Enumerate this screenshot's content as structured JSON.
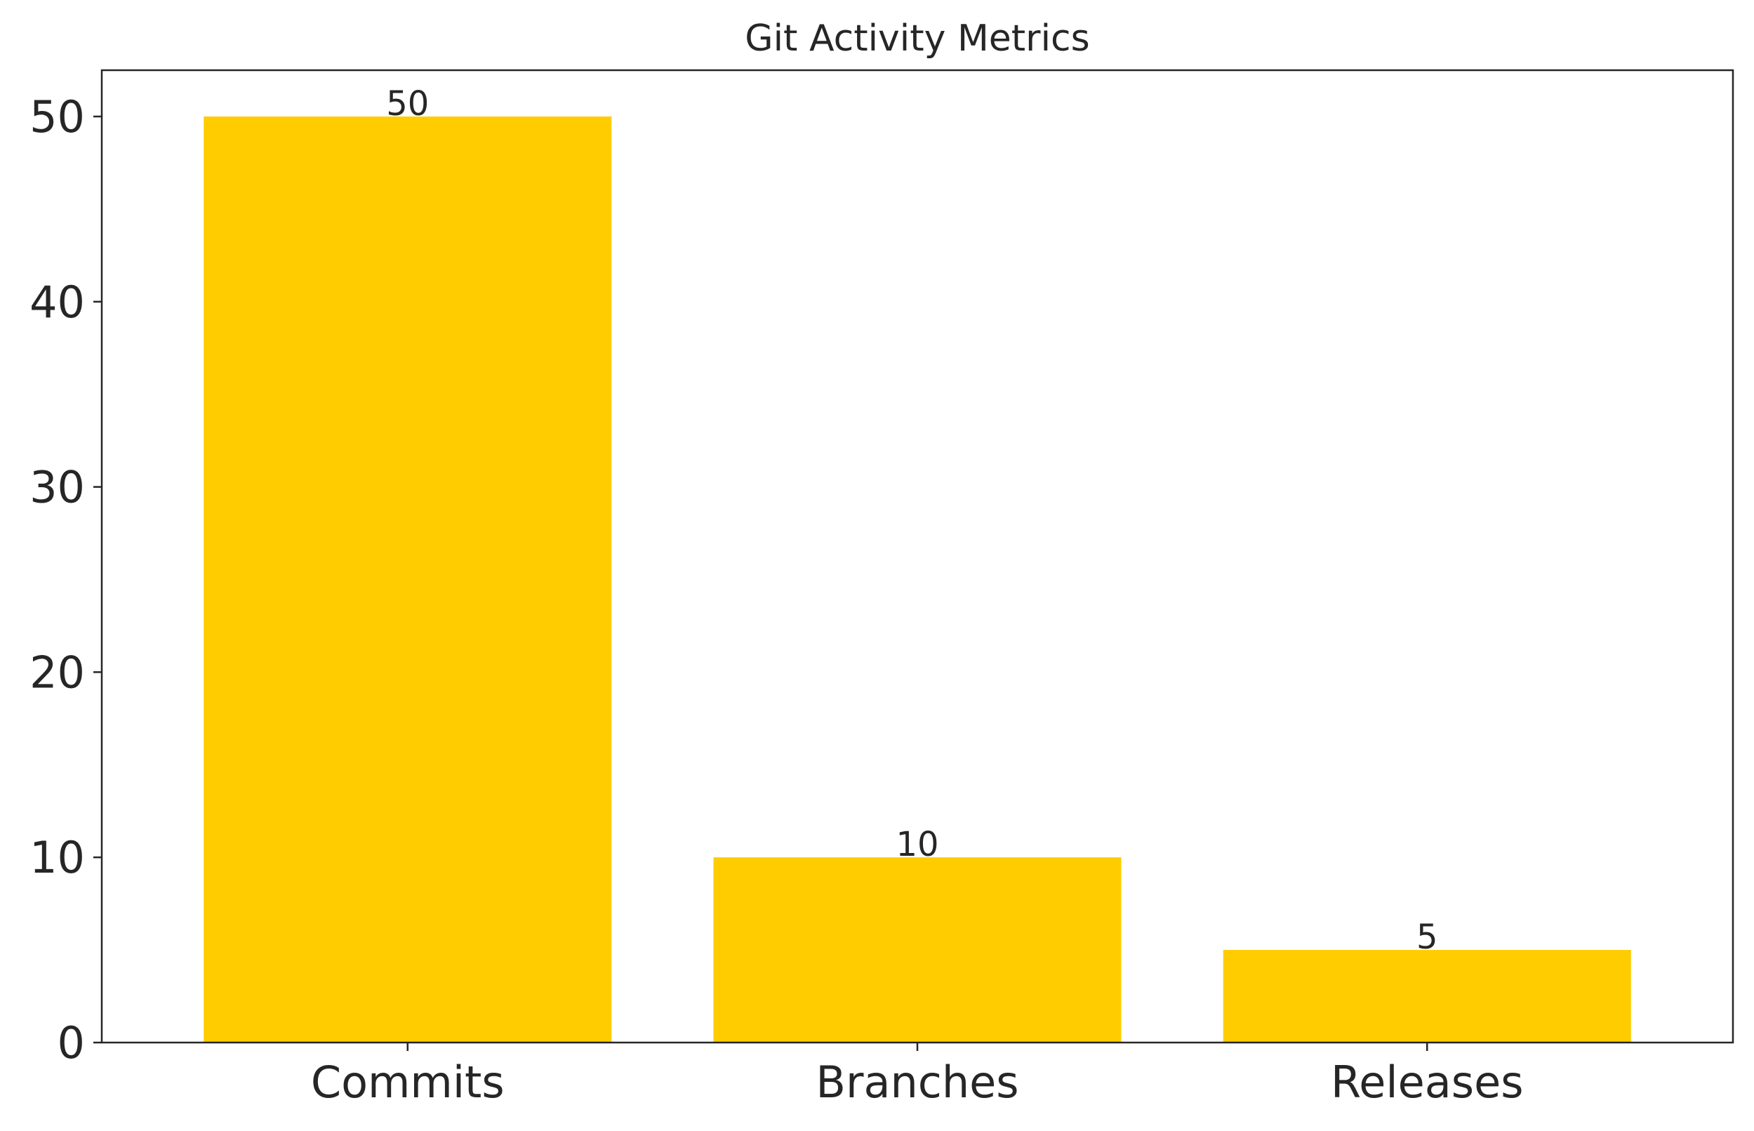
{
  "chart_data": {
    "type": "bar",
    "title": "Git Activity Metrics",
    "xlabel": "",
    "ylabel": "",
    "categories": [
      "Commits",
      "Branches",
      "Releases"
    ],
    "values": [
      50,
      10,
      5
    ],
    "data_labels": [
      "50",
      "10",
      "5"
    ],
    "ylim": [
      0,
      52.5
    ],
    "yticks": [
      0,
      10,
      20,
      30,
      40,
      50
    ],
    "grid": false,
    "legend": "none",
    "bar_color": "#FFCC00",
    "axis_color": "#262626"
  }
}
